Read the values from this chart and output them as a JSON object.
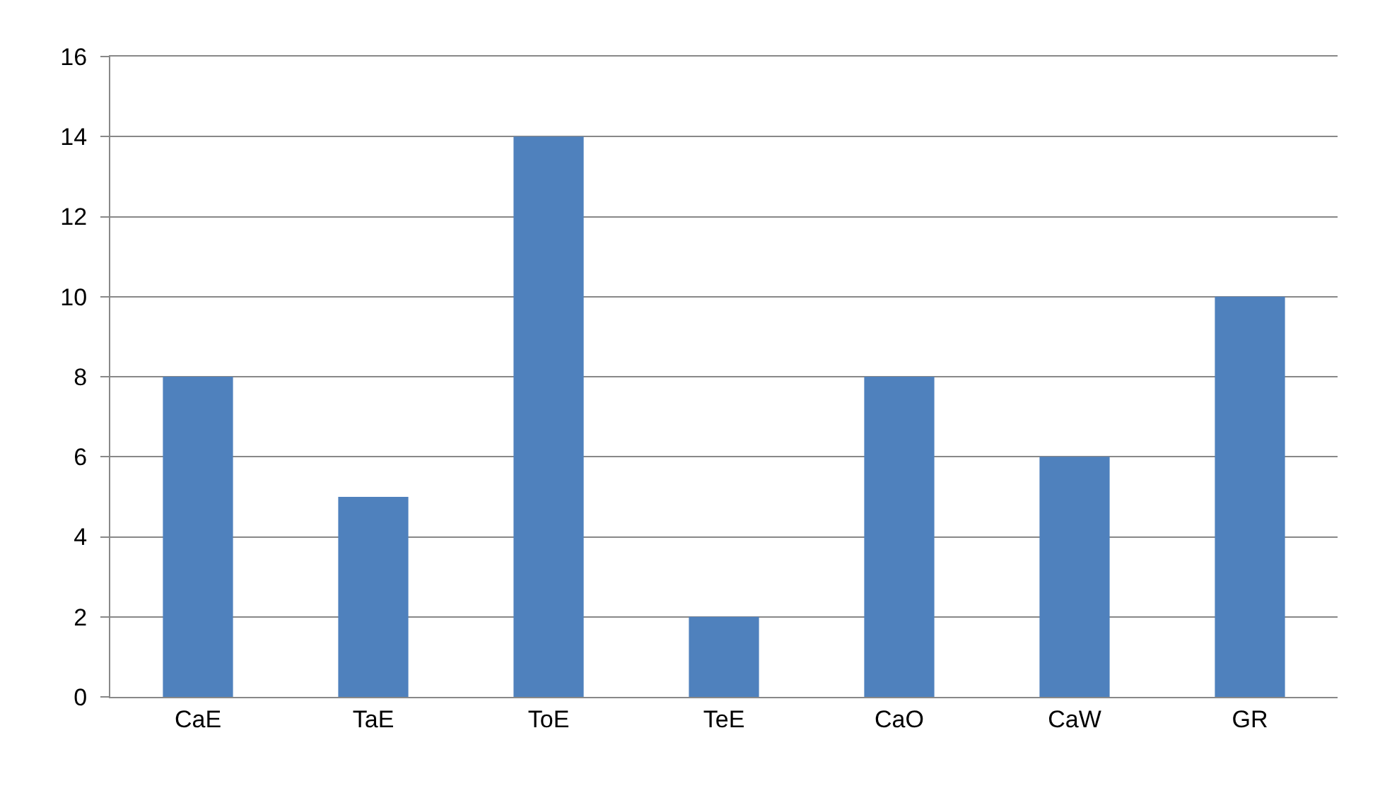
{
  "chart_data": {
    "type": "bar",
    "categories": [
      "CaE",
      "TaE",
      "ToE",
      "TeE",
      "CaO",
      "CaW",
      "GR"
    ],
    "values": [
      8,
      5,
      14,
      2,
      8,
      6,
      10
    ],
    "color": "#4f81bd",
    "ylim": [
      0,
      16
    ],
    "yticks": [
      0,
      2,
      4,
      6,
      8,
      10,
      12,
      14,
      16
    ],
    "grid": "y"
  }
}
